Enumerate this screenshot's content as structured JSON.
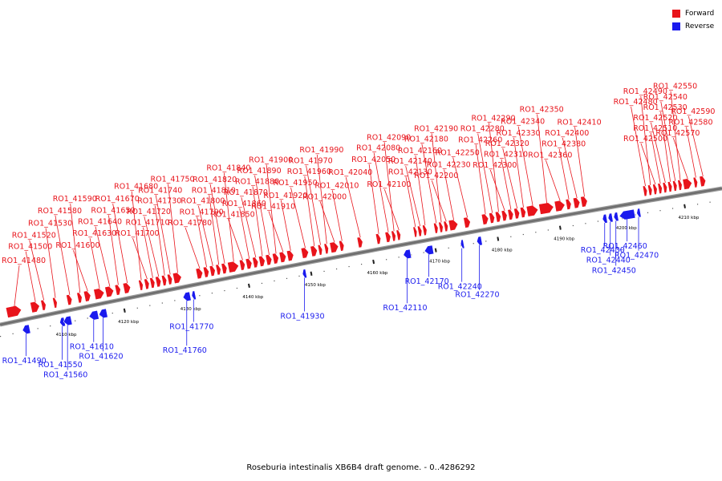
{
  "title": "Roseburia intestinalis XB6B4 draft genome. - 0..4286292",
  "legend": [
    {
      "label": "Forward",
      "color": "#e8141b"
    },
    {
      "label": "Reverse",
      "color": "#1a1aee"
    }
  ],
  "colors": {
    "forward": "#e8141b",
    "reverse": "#1a1aee",
    "backbone": "#6e6e6e"
  },
  "axis": {
    "unit": "kbp",
    "ticks": [
      4110,
      4120,
      4130,
      4140,
      4150,
      4160,
      4170,
      4180,
      4190,
      4200,
      4210
    ],
    "tick_labels": [
      "4110 kbp",
      "4120 kbp",
      "4130 kbp",
      "4140 kbp",
      "4150 kbp",
      "4160 kbp",
      "4170 kbp",
      "4180 kbp",
      "4190 kbp",
      "4200 kbp",
      "4210 kbp"
    ]
  },
  "genes": [
    {
      "id": "RO1_41480",
      "strand": "+",
      "start": 4101.1,
      "end": 4103.5
    },
    {
      "id": "RO1_41490",
      "strand": "-",
      "start": 4103.6,
      "end": 4104.8
    },
    {
      "id": "RO1_41500",
      "strand": "+",
      "start": 4105.0,
      "end": 4106.4
    },
    {
      "id": "RO1_41520",
      "strand": "+",
      "start": 4106.7,
      "end": 4107.4
    },
    {
      "id": "RO1_41530",
      "strand": "+",
      "start": 4108.6,
      "end": 4109.2
    },
    {
      "id": "RO1_41550",
      "strand": "-",
      "start": 4109.6,
      "end": 4110.4
    },
    {
      "id": "RO1_41560",
      "strand": "-",
      "start": 4110.2,
      "end": 4111.5
    },
    {
      "id": "RO1_41580",
      "strand": "+",
      "start": 4110.8,
      "end": 4111.6
    },
    {
      "id": "RO1_41590",
      "strand": "+",
      "start": 4112.5,
      "end": 4113.2
    },
    {
      "id": "RO1_41600",
      "strand": "+",
      "start": 4113.6,
      "end": 4114.6
    },
    {
      "id": "RO1_41610",
      "strand": "-",
      "start": 4114.3,
      "end": 4115.8
    },
    {
      "id": "RO1_41620",
      "strand": "-",
      "start": 4115.9,
      "end": 4117.2
    },
    {
      "id": "RO1_41630",
      "strand": "+",
      "start": 4115.2,
      "end": 4116.8
    },
    {
      "id": "RO1_41640",
      "strand": "+",
      "start": 4117.0,
      "end": 4118.3
    },
    {
      "id": "RO1_41650",
      "strand": "+",
      "start": 4118.6,
      "end": 4119.4
    },
    {
      "id": "RO1_41670",
      "strand": "+",
      "start": 4119.9,
      "end": 4121.0
    },
    {
      "id": "RO1_41680",
      "strand": "+",
      "start": 4122.4,
      "end": 4123.0
    },
    {
      "id": "RO1_41700",
      "strand": "+",
      "start": 4123.3,
      "end": 4124.0
    },
    {
      "id": "RO1_41710",
      "strand": "+",
      "start": 4124.2,
      "end": 4124.9
    },
    {
      "id": "RO1_41720",
      "strand": "+",
      "start": 4125.1,
      "end": 4125.9
    },
    {
      "id": "RO1_41730",
      "strand": "+",
      "start": 4126.1,
      "end": 4126.8
    },
    {
      "id": "RO1_41740",
      "strand": "+",
      "start": 4127.0,
      "end": 4127.7
    },
    {
      "id": "RO1_41750",
      "strand": "+",
      "start": 4127.9,
      "end": 4129.2
    },
    {
      "id": "RO1_41760",
      "strand": "-",
      "start": 4129.4,
      "end": 4130.6
    },
    {
      "id": "RO1_41770",
      "strand": "-",
      "start": 4130.8,
      "end": 4131.4
    },
    {
      "id": "RO1_41780",
      "strand": "+",
      "start": 4131.6,
      "end": 4132.6
    },
    {
      "id": "RO1_41790",
      "strand": "+",
      "start": 4132.8,
      "end": 4133.6
    },
    {
      "id": "RO1_41800",
      "strand": "+",
      "start": 4133.8,
      "end": 4134.6
    },
    {
      "id": "RO1_41810",
      "strand": "+",
      "start": 4134.8,
      "end": 4135.5
    },
    {
      "id": "RO1_41820",
      "strand": "+",
      "start": 4135.7,
      "end": 4136.5
    },
    {
      "id": "RO1_41840",
      "strand": "+",
      "start": 4136.7,
      "end": 4138.4
    },
    {
      "id": "RO1_41850",
      "strand": "+",
      "start": 4138.6,
      "end": 4139.4
    },
    {
      "id": "RO1_41860",
      "strand": "+",
      "start": 4139.6,
      "end": 4140.5
    },
    {
      "id": "RO1_41870",
      "strand": "+",
      "start": 4140.7,
      "end": 4141.5
    },
    {
      "id": "RO1_41880",
      "strand": "+",
      "start": 4141.7,
      "end": 4142.6
    },
    {
      "id": "RO1_41890",
      "strand": "+",
      "start": 4142.8,
      "end": 4143.7
    },
    {
      "id": "RO1_41900",
      "strand": "+",
      "start": 4143.9,
      "end": 4144.8
    },
    {
      "id": "RO1_41910",
      "strand": "+",
      "start": 4145.0,
      "end": 4146.0
    },
    {
      "id": "RO1_41920",
      "strand": "+",
      "start": 4146.2,
      "end": 4147.2
    },
    {
      "id": "RO1_41930",
      "strand": "-",
      "start": 4148.6,
      "end": 4149.2
    },
    {
      "id": "RO1_41950",
      "strand": "+",
      "start": 4148.5,
      "end": 4149.6
    },
    {
      "id": "RO1_41960",
      "strand": "+",
      "start": 4150.0,
      "end": 4151.0
    },
    {
      "id": "RO1_41970",
      "strand": "+",
      "start": 4151.2,
      "end": 4151.8
    },
    {
      "id": "RO1_41990",
      "strand": "+",
      "start": 4152.2,
      "end": 4152.8
    },
    {
      "id": "RO1_42000",
      "strand": "+",
      "start": 4153.1,
      "end": 4154.4
    },
    {
      "id": "RO1_42010",
      "strand": "+",
      "start": 4154.6,
      "end": 4155.3
    },
    {
      "id": "RO1_42040",
      "strand": "+",
      "start": 4157.5,
      "end": 4158.3
    },
    {
      "id": "RO1_42050",
      "strand": "+",
      "start": 4160.5,
      "end": 4161.2
    },
    {
      "id": "RO1_42080",
      "strand": "+",
      "start": 4162.0,
      "end": 4162.8
    },
    {
      "id": "RO1_42090",
      "strand": "+",
      "start": 4163.0,
      "end": 4163.6
    },
    {
      "id": "RO1_42100",
      "strand": "+",
      "start": 4163.8,
      "end": 4164.4
    },
    {
      "id": "RO1_42110",
      "strand": "-",
      "start": 4164.8,
      "end": 4166.0
    },
    {
      "id": "RO1_42130",
      "strand": "+",
      "start": 4166.5,
      "end": 4167.0
    },
    {
      "id": "RO1_42140",
      "strand": "+",
      "start": 4167.2,
      "end": 4167.8
    },
    {
      "id": "RO1_42160",
      "strand": "+",
      "start": 4168.0,
      "end": 4168.6
    },
    {
      "id": "RO1_42170",
      "strand": "-",
      "start": 4168.2,
      "end": 4169.6
    },
    {
      "id": "RO1_42180",
      "strand": "+",
      "start": 4169.8,
      "end": 4170.4
    },
    {
      "id": "RO1_42190",
      "strand": "+",
      "start": 4170.6,
      "end": 4171.2
    },
    {
      "id": "RO1_42200",
      "strand": "+",
      "start": 4171.4,
      "end": 4172.0
    },
    {
      "id": "RO1_42230",
      "strand": "+",
      "start": 4172.2,
      "end": 4173.6
    },
    {
      "id": "RO1_42240",
      "strand": "-",
      "start": 4174.0,
      "end": 4174.4
    },
    {
      "id": "RO1_42250",
      "strand": "+",
      "start": 4174.6,
      "end": 4175.6
    },
    {
      "id": "RO1_42260",
      "strand": "+",
      "start": 4177.5,
      "end": 4178.5
    },
    {
      "id": "RO1_42270",
      "strand": "-",
      "start": 4176.6,
      "end": 4177.4
    },
    {
      "id": "RO1_42280",
      "strand": "+",
      "start": 4178.7,
      "end": 4179.5
    },
    {
      "id": "RO1_42290",
      "strand": "+",
      "start": 4179.7,
      "end": 4180.5
    },
    {
      "id": "RO1_42300",
      "strand": "+",
      "start": 4180.7,
      "end": 4181.5
    },
    {
      "id": "RO1_42310",
      "strand": "+",
      "start": 4181.7,
      "end": 4182.5
    },
    {
      "id": "RO1_42320",
      "strand": "+",
      "start": 4182.7,
      "end": 4183.5
    },
    {
      "id": "RO1_42330",
      "strand": "+",
      "start": 4183.7,
      "end": 4184.5
    },
    {
      "id": "RO1_42340",
      "strand": "+",
      "start": 4184.7,
      "end": 4186.5
    },
    {
      "id": "RO1_42350",
      "strand": "+",
      "start": 4186.7,
      "end": 4189.0
    },
    {
      "id": "RO1_42360",
      "strand": "+",
      "start": 4189.2,
      "end": 4190.8
    },
    {
      "id": "RO1_42380",
      "strand": "+",
      "start": 4191.0,
      "end": 4191.8
    },
    {
      "id": "RO1_42400",
      "strand": "+",
      "start": 4192.2,
      "end": 4193.2
    },
    {
      "id": "RO1_42410",
      "strand": "+",
      "start": 4193.4,
      "end": 4194.4
    },
    {
      "id": "RO1_42430",
      "strand": "-",
      "start": 4196.8,
      "end": 4197.5
    },
    {
      "id": "RO1_42440",
      "strand": "-",
      "start": 4197.7,
      "end": 4198.4
    },
    {
      "id": "RO1_42450",
      "strand": "-",
      "start": 4198.6,
      "end": 4199.3
    },
    {
      "id": "RO1_42460",
      "strand": "-",
      "start": 4199.5,
      "end": 4202.0
    },
    {
      "id": "RO1_42470",
      "strand": "-",
      "start": 4202.3,
      "end": 4202.9
    },
    {
      "id": "RO1_42480",
      "strand": "+",
      "start": 4203.4,
      "end": 4204.0
    },
    {
      "id": "RO1_42490",
      "strand": "+",
      "start": 4204.2,
      "end": 4204.8
    },
    {
      "id": "RO1_42500",
      "strand": "+",
      "start": 4205.0,
      "end": 4205.6
    },
    {
      "id": "RO1_42510",
      "strand": "+",
      "start": 4205.8,
      "end": 4206.4
    },
    {
      "id": "RO1_42520",
      "strand": "+",
      "start": 4206.6,
      "end": 4207.2
    },
    {
      "id": "RO1_42530",
      "strand": "+",
      "start": 4207.4,
      "end": 4208.0
    },
    {
      "id": "RO1_42540",
      "strand": "+",
      "start": 4208.2,
      "end": 4208.8
    },
    {
      "id": "RO1_42550",
      "strand": "+",
      "start": 4209.0,
      "end": 4209.6
    },
    {
      "id": "RO1_42570",
      "strand": "+",
      "start": 4209.8,
      "end": 4211.2
    },
    {
      "id": "RO1_42580",
      "strand": "+",
      "start": 4211.5,
      "end": 4212.1
    },
    {
      "id": "RO1_42590",
      "strand": "+",
      "start": 4212.5,
      "end": 4213.4
    }
  ]
}
